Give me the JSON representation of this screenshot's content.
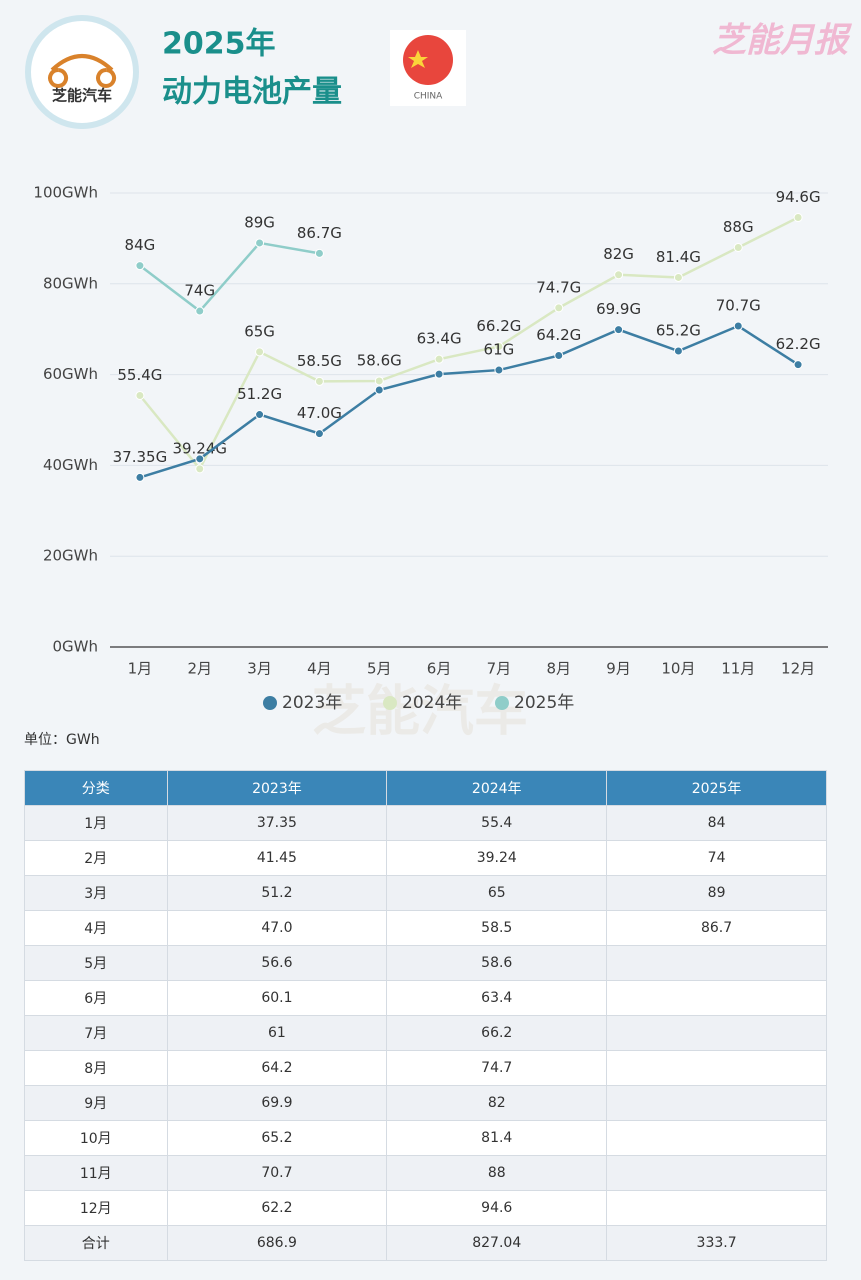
{
  "header": {
    "logo_text": "芝能汽车",
    "title_line1": "2025年",
    "title_line2": "动力电池产量",
    "flag_label": "CHINA",
    "brand": "芝能月报",
    "watermark": "芝能汽车"
  },
  "chart_data": {
    "type": "line",
    "categories": [
      "1月",
      "2月",
      "3月",
      "4月",
      "5月",
      "6月",
      "7月",
      "8月",
      "9月",
      "10月",
      "11月",
      "12月"
    ],
    "series": [
      {
        "name": "2023年",
        "color": "#3d7ea3",
        "values": [
          37.35,
          41.45,
          51.2,
          47.0,
          56.6,
          60.1,
          61,
          64.2,
          69.9,
          65.2,
          70.7,
          62.2
        ],
        "value_labels": [
          "37.35G",
          null,
          "51.2G",
          "47.0G",
          null,
          null,
          "61G",
          "64.2G",
          "69.9G",
          "65.2G",
          "70.7G",
          "62.2G"
        ]
      },
      {
        "name": "2024年",
        "color": "#d9e8c2",
        "values": [
          55.4,
          39.24,
          65,
          58.5,
          58.6,
          63.4,
          66.2,
          74.7,
          82,
          81.4,
          88,
          94.6
        ],
        "value_labels": [
          "55.4G",
          "39.24G",
          "65G",
          "58.5G",
          "58.6G",
          "63.4G",
          "66.2G",
          "74.7G",
          "82G",
          "81.4G",
          "88G",
          "94.6G"
        ]
      },
      {
        "name": "2025年",
        "color": "#8fcdc9",
        "values": [
          84,
          74,
          89,
          86.7,
          null,
          null,
          null,
          null,
          null,
          null,
          null,
          null
        ],
        "value_labels": [
          "84G",
          "74G",
          "89G",
          "86.7G",
          null,
          null,
          null,
          null,
          null,
          null,
          null,
          null
        ]
      }
    ],
    "ylim": [
      0,
      100
    ],
    "yticks": [
      {
        "value": 0,
        "label": "0GWh"
      },
      {
        "value": 20,
        "label": "20GWh"
      },
      {
        "value": 40,
        "label": "40GWh"
      },
      {
        "value": 60,
        "label": "60GWh"
      },
      {
        "value": 80,
        "label": "80GWh"
      },
      {
        "value": 100,
        "label": "100GWh"
      }
    ],
    "grid": true,
    "legend": "bottom"
  },
  "unit_note": "单位：GWh",
  "table": {
    "header": [
      "分类",
      "2023年",
      "2024年",
      "2025年"
    ],
    "rows": [
      [
        "1月",
        "37.35",
        "55.4",
        "84"
      ],
      [
        "2月",
        "41.45",
        "39.24",
        "74"
      ],
      [
        "3月",
        "51.2",
        "65",
        "89"
      ],
      [
        "4月",
        "47.0",
        "58.5",
        "86.7"
      ],
      [
        "5月",
        "56.6",
        "58.6",
        null
      ],
      [
        "6月",
        "60.1",
        "63.4",
        null
      ],
      [
        "7月",
        "61",
        "66.2",
        null
      ],
      [
        "8月",
        "64.2",
        "74.7",
        null
      ],
      [
        "9月",
        "69.9",
        "82",
        null
      ],
      [
        "10月",
        "65.2",
        "81.4",
        null
      ],
      [
        "11月",
        "70.7",
        "88",
        null
      ],
      [
        "12月",
        "62.2",
        "94.6",
        null
      ],
      [
        "合计",
        "686.9",
        "827.04",
        "333.7"
      ]
    ]
  }
}
